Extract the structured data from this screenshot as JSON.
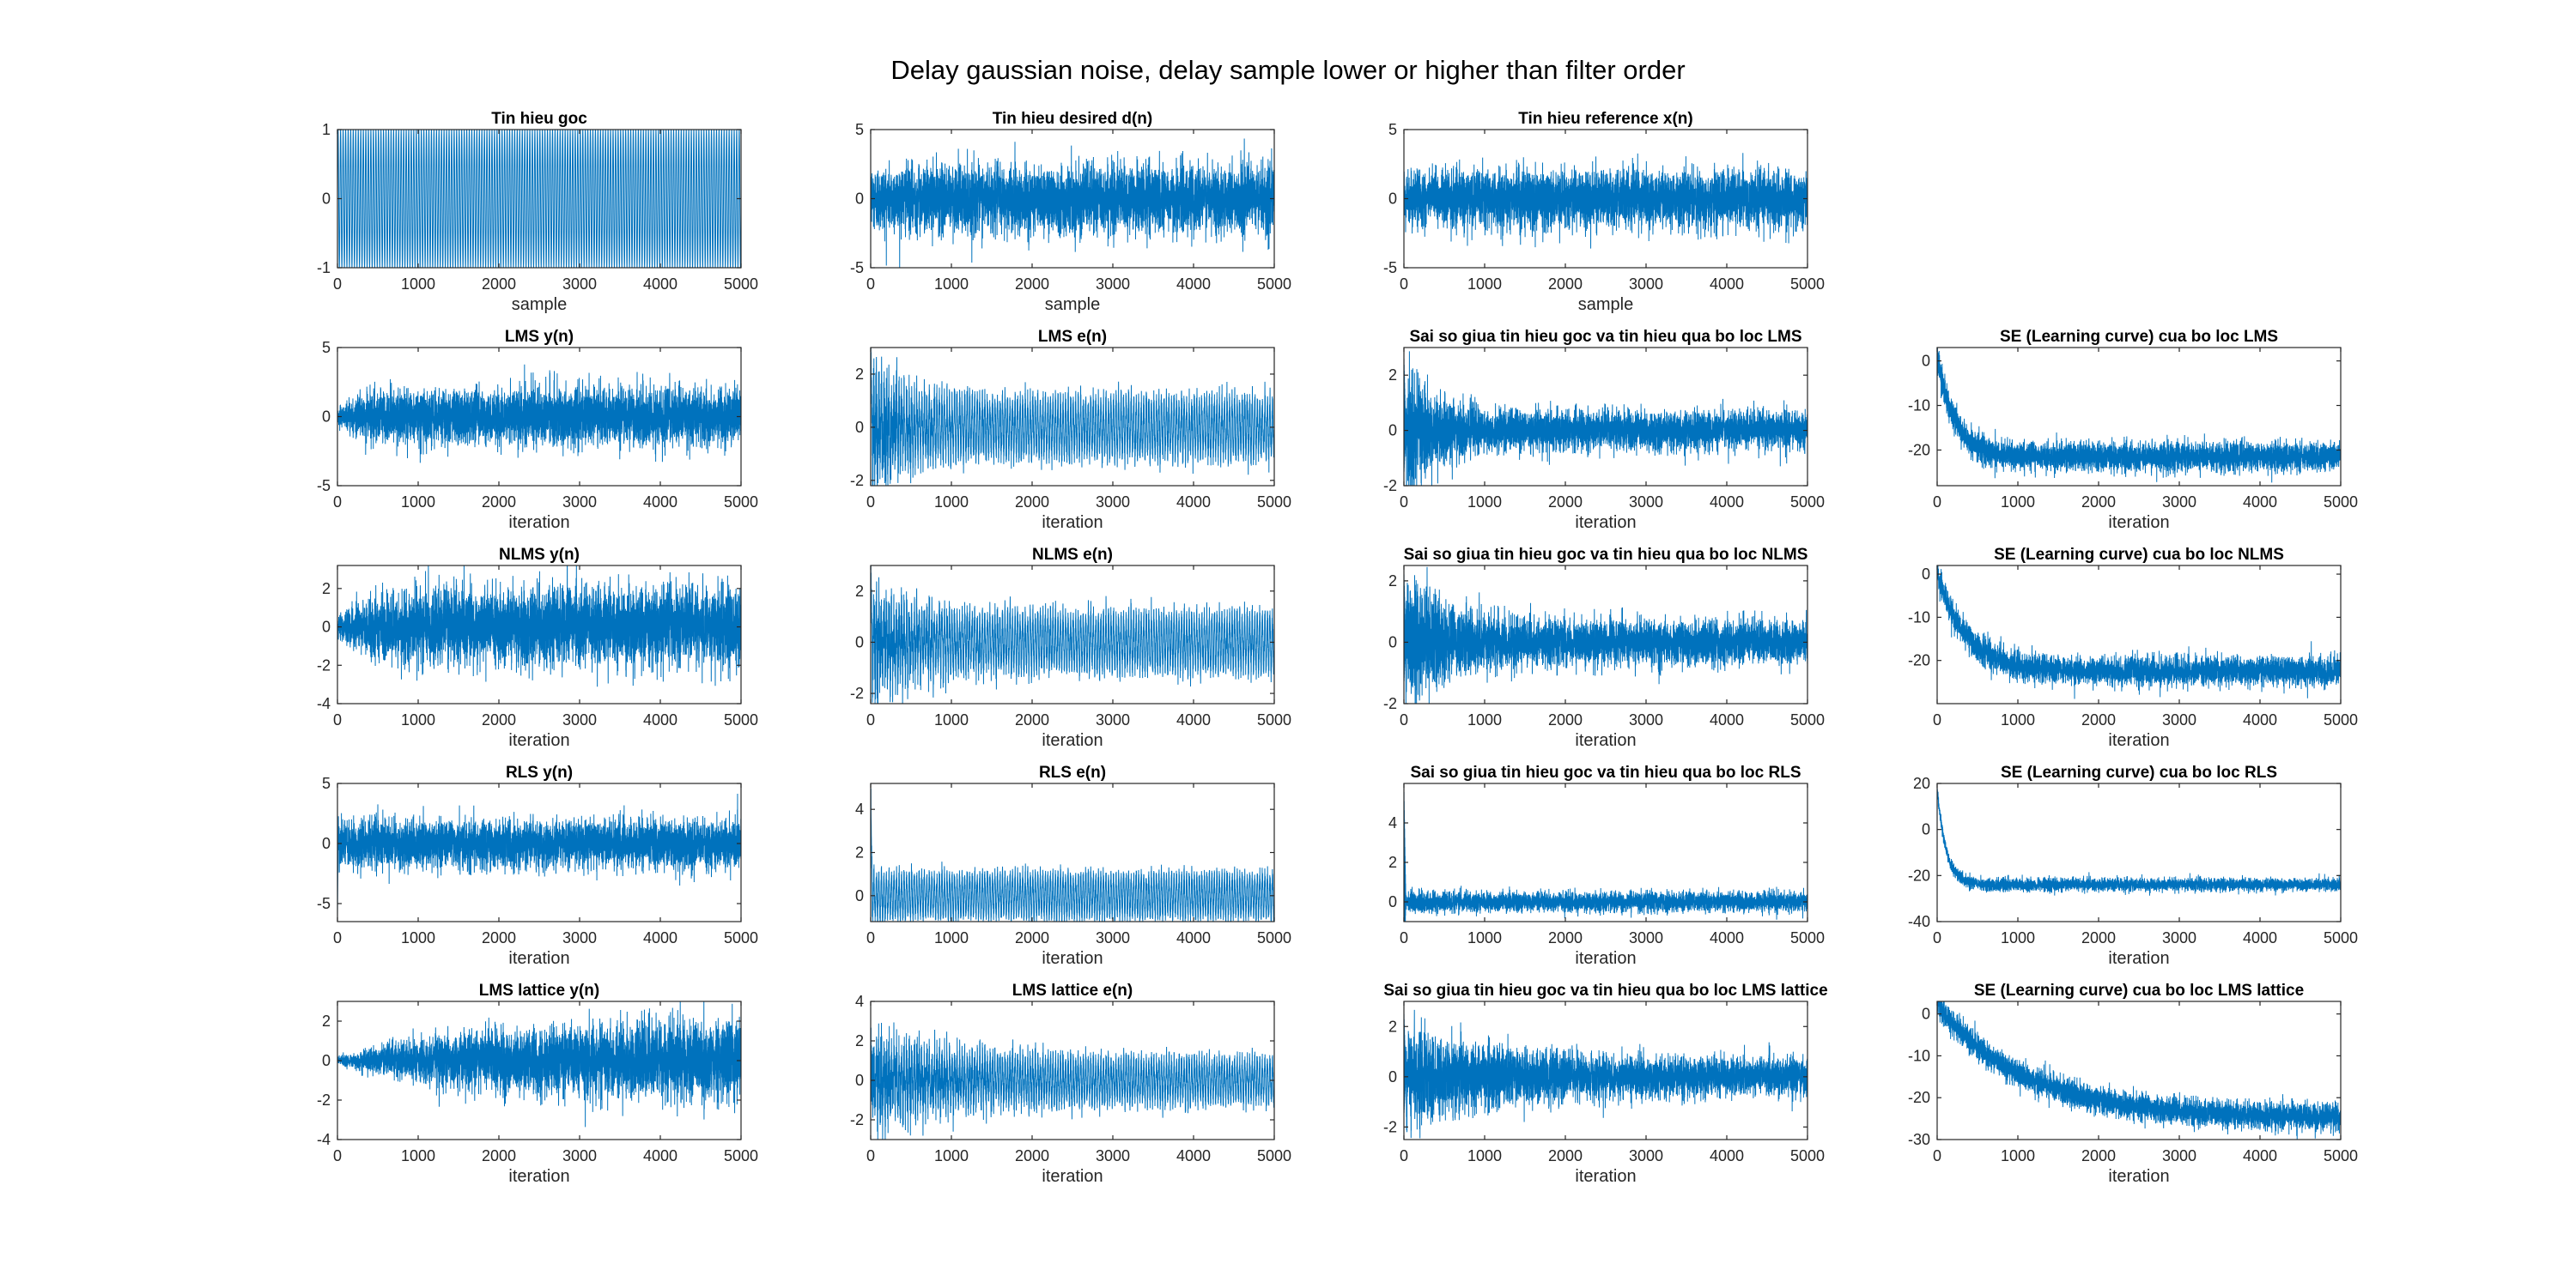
{
  "figure": {
    "title": "Delay gaussian noise, delay sample lower or higher than filter order",
    "line_color": "#0072BD",
    "axis_color": "#262626"
  },
  "chart_data": [
    {
      "id": "tin-hieu-goc",
      "type": "line",
      "title": "Tin hieu goc",
      "xlabel": "sample",
      "ylabel": "",
      "xlim": [
        0,
        5000
      ],
      "ylim": [
        -1,
        1
      ],
      "xticks": [
        0,
        1000,
        2000,
        3000,
        4000,
        5000
      ],
      "yticks": [
        -1,
        0,
        1
      ],
      "signal": {
        "kind": "sinusoid",
        "amplitude": 1.0,
        "cycles": 160,
        "n": 5000
      },
      "series": [
        {
          "values_summary": "sinusoid oscillating between -1 and 1"
        }
      ]
    },
    {
      "id": "desired",
      "type": "line",
      "title": "Tin hieu desired d(n)",
      "xlabel": "sample",
      "ylabel": "",
      "xlim": [
        0,
        5000
      ],
      "ylim": [
        -5,
        5
      ],
      "xticks": [
        0,
        1000,
        2000,
        3000,
        4000,
        5000
      ],
      "yticks": [
        -5,
        0,
        5
      ],
      "signal": {
        "kind": "noise",
        "sigma_start": 1.2,
        "sigma_end": 1.2,
        "n": 5000
      },
      "series": [
        {
          "values_summary": "noisy signal within about ±4"
        }
      ]
    },
    {
      "id": "reference",
      "type": "line",
      "title": "Tin hieu reference x(n)",
      "xlabel": "sample",
      "ylabel": "",
      "xlim": [
        0,
        5000
      ],
      "ylim": [
        -5,
        5
      ],
      "xticks": [
        0,
        1000,
        2000,
        3000,
        4000,
        5000
      ],
      "yticks": [
        -5,
        0,
        5
      ],
      "signal": {
        "kind": "noise",
        "sigma_start": 1.0,
        "sigma_end": 1.0,
        "n": 5000
      },
      "series": [
        {
          "values_summary": "gaussian noise within about ±3"
        }
      ]
    },
    {
      "id": "lms-y",
      "type": "line",
      "title": "LMS y(n)",
      "xlabel": "iteration",
      "ylabel": "",
      "xlim": [
        0,
        5000
      ],
      "ylim": [
        -5,
        5
      ],
      "xticks": [
        0,
        1000,
        2000,
        3000,
        4000,
        5000
      ],
      "yticks": [
        -5,
        0,
        5
      ],
      "signal": {
        "kind": "noise",
        "sigma_start": 0.3,
        "sigma_end": 1.0,
        "decay": 300,
        "n": 5000
      },
      "series": [
        {
          "values_summary": "noisy output growing to about ±3"
        }
      ]
    },
    {
      "id": "lms-e",
      "type": "line",
      "title": "LMS e(n)",
      "xlabel": "iteration",
      "ylabel": "",
      "xlim": [
        0,
        5000
      ],
      "ylim": [
        -2.2,
        3
      ],
      "xticks": [
        0,
        1000,
        2000,
        3000,
        4000,
        5000
      ],
      "yticks": [
        -2,
        0,
        2
      ],
      "signal": {
        "kind": "errsin",
        "amplitude": 1.0,
        "cycles": 160,
        "spike": 3.0,
        "noise_start": 1.2,
        "noise_end": 0.25,
        "decay": 400,
        "n": 5000
      },
      "series": [
        {
          "values_summary": "error converging to sinusoid ±1.5"
        }
      ]
    },
    {
      "id": "lms-diff",
      "type": "line",
      "title": "Sai so giua tin hieu goc va tin hieu qua bo loc LMS",
      "xlabel": "iteration",
      "ylabel": "",
      "xlim": [
        0,
        5000
      ],
      "ylim": [
        -2,
        3
      ],
      "xticks": [
        0,
        1000,
        2000,
        3000,
        4000,
        5000
      ],
      "yticks": [
        -2,
        0,
        2
      ],
      "signal": {
        "kind": "decaynoise",
        "sigma_start": 1.3,
        "sigma_end": 0.35,
        "decay": 350,
        "spike": 2.7,
        "n": 5000
      },
      "series": [
        {
          "values_summary": "difference decaying to about ±0.8"
        }
      ]
    },
    {
      "id": "lms-se",
      "type": "line",
      "title": "SE (Learning curve) cua bo loc LMS",
      "xlabel": "iteration",
      "ylabel": "",
      "xlim": [
        0,
        5000
      ],
      "ylim": [
        -28,
        3
      ],
      "xticks": [
        0,
        1000,
        2000,
        3000,
        4000,
        5000
      ],
      "yticks": [
        -20,
        -10,
        0
      ],
      "signal": {
        "kind": "curve",
        "start": 1.0,
        "end": -21.5,
        "decay": 220,
        "noise": 1.6,
        "n": 5000
      },
      "series": [
        {
          "values_summary": "learning curve falling from 0 to about -22 dB"
        }
      ]
    },
    {
      "id": "nlms-y",
      "type": "line",
      "title": "NLMS y(n)",
      "xlabel": "iteration",
      "ylabel": "",
      "xlim": [
        0,
        5000
      ],
      "ylim": [
        -4,
        3.2
      ],
      "xticks": [
        0,
        1000,
        2000,
        3000,
        4000,
        5000
      ],
      "yticks": [
        -4,
        -2,
        0,
        2
      ],
      "signal": {
        "kind": "noise",
        "sigma_start": 0.3,
        "sigma_end": 1.0,
        "decay": 400,
        "n": 5000
      },
      "series": [
        {
          "values_summary": "noisy output within about ±3"
        }
      ]
    },
    {
      "id": "nlms-e",
      "type": "line",
      "title": "NLMS e(n)",
      "xlabel": "iteration",
      "ylabel": "",
      "xlim": [
        0,
        5000
      ],
      "ylim": [
        -2.4,
        3
      ],
      "xticks": [
        0,
        1000,
        2000,
        3000,
        4000,
        5000
      ],
      "yticks": [
        -2,
        0,
        2
      ],
      "signal": {
        "kind": "errsin",
        "amplitude": 1.0,
        "cycles": 160,
        "spike": 2.9,
        "noise_start": 1.1,
        "noise_end": 0.25,
        "decay": 500,
        "n": 5000
      },
      "series": [
        {
          "values_summary": "error converging to sinusoid ±1.5"
        }
      ]
    },
    {
      "id": "nlms-diff",
      "type": "line",
      "title": "Sai so giua tin hieu goc va tin hieu qua bo loc NLMS",
      "xlabel": "iteration",
      "ylabel": "",
      "xlim": [
        0,
        5000
      ],
      "ylim": [
        -2,
        2.5
      ],
      "xticks": [
        0,
        1000,
        2000,
        3000,
        4000,
        5000
      ],
      "yticks": [
        -2,
        0,
        2
      ],
      "signal": {
        "kind": "decaynoise",
        "sigma_start": 1.2,
        "sigma_end": 0.35,
        "decay": 500,
        "spike": 2.3,
        "n": 5000
      },
      "series": [
        {
          "values_summary": "difference decaying to about ±0.8"
        }
      ]
    },
    {
      "id": "nlms-se",
      "type": "line",
      "title": "SE (Learning curve) cua bo loc NLMS",
      "xlabel": "iteration",
      "ylabel": "",
      "xlim": [
        0,
        5000
      ],
      "ylim": [
        -30,
        2
      ],
      "xticks": [
        0,
        1000,
        2000,
        3000,
        4000,
        5000
      ],
      "yticks": [
        -20,
        -10,
        0
      ],
      "signal": {
        "kind": "curve",
        "start": 0.0,
        "end": -22.5,
        "decay": 360,
        "noise": 1.6,
        "n": 5000
      },
      "series": [
        {
          "values_summary": "learning curve falling from 0 to about -23 dB"
        }
      ]
    },
    {
      "id": "rls-y",
      "type": "line",
      "title": "RLS y(n)",
      "xlabel": "iteration",
      "ylabel": "",
      "xlim": [
        0,
        5000
      ],
      "ylim": [
        -6.5,
        5
      ],
      "xticks": [
        0,
        1000,
        2000,
        3000,
        4000,
        5000
      ],
      "yticks": [
        -5,
        0,
        5
      ],
      "signal": {
        "kind": "noise",
        "sigma_start": 1.0,
        "sigma_end": 1.0,
        "spike": -6.0,
        "n": 5000
      },
      "series": [
        {
          "values_summary": "noisy output within about ±3 with initial spike to -6"
        }
      ]
    },
    {
      "id": "rls-e",
      "type": "line",
      "title": "RLS e(n)",
      "xlabel": "iteration",
      "ylabel": "",
      "xlim": [
        0,
        5000
      ],
      "ylim": [
        -1.2,
        5.2
      ],
      "xticks": [
        0,
        1000,
        2000,
        3000,
        4000,
        5000
      ],
      "yticks": [
        0,
        2,
        4
      ],
      "signal": {
        "kind": "errsin",
        "amplitude": 0.95,
        "cycles": 160,
        "spike": 5.0,
        "noise_start": 0.4,
        "noise_end": 0.2,
        "decay": 100,
        "n": 5000
      },
      "series": [
        {
          "values_summary": "error sinusoid ±1.3 with initial spike to 5"
        }
      ]
    },
    {
      "id": "rls-diff",
      "type": "line",
      "title": "Sai so giua tin hieu goc va tin hieu qua bo loc RLS",
      "xlabel": "iteration",
      "ylabel": "",
      "xlim": [
        0,
        5000
      ],
      "ylim": [
        -1,
        6
      ],
      "xticks": [
        0,
        1000,
        2000,
        3000,
        4000,
        5000
      ],
      "yticks": [
        0,
        2,
        4
      ],
      "signal": {
        "kind": "decaynoise",
        "sigma_start": 0.3,
        "sigma_end": 0.25,
        "decay": 100,
        "spike": 5.8,
        "n": 5000
      },
      "series": [
        {
          "values_summary": "difference near 0 with initial spike to 5.8"
        }
      ]
    },
    {
      "id": "rls-se",
      "type": "line",
      "title": "SE (Learning curve) cua bo loc RLS",
      "xlabel": "iteration",
      "ylabel": "",
      "xlim": [
        0,
        5000
      ],
      "ylim": [
        -40,
        20
      ],
      "xticks": [
        0,
        1000,
        2000,
        3000,
        4000,
        5000
      ],
      "yticks": [
        -40,
        -20,
        0,
        20
      ],
      "signal": {
        "kind": "curve",
        "start": 18.0,
        "end": -24.0,
        "decay": 110,
        "noise": 1.4,
        "n": 5000
      },
      "series": [
        {
          "values_summary": "learning curve falling from 18 to about -24 dB"
        }
      ]
    },
    {
      "id": "lattice-y",
      "type": "line",
      "title": "LMS lattice y(n)",
      "xlabel": "iteration",
      "ylabel": "",
      "xlim": [
        0,
        5000
      ],
      "ylim": [
        -4,
        3
      ],
      "xticks": [
        0,
        1000,
        2000,
        3000,
        4000,
        5000
      ],
      "yticks": [
        -4,
        -2,
        0,
        2
      ],
      "signal": {
        "kind": "noise",
        "sigma_start": 0.1,
        "sigma_end": 1.0,
        "decay": 1500,
        "n": 5000
      },
      "series": [
        {
          "values_summary": "output slowly growing to about ±3"
        }
      ]
    },
    {
      "id": "lattice-e",
      "type": "line",
      "title": "LMS lattice e(n)",
      "xlabel": "iteration",
      "ylabel": "",
      "xlim": [
        0,
        5000
      ],
      "ylim": [
        -3,
        4
      ],
      "xticks": [
        0,
        1000,
        2000,
        3000,
        4000,
        5000
      ],
      "yticks": [
        -2,
        0,
        2,
        4
      ],
      "signal": {
        "kind": "errsin",
        "amplitude": 1.0,
        "cycles": 160,
        "spike": 0,
        "noise_start": 1.0,
        "noise_end": 0.25,
        "decay": 1200,
        "n": 5000
      },
      "series": [
        {
          "values_summary": "error slowly converging to sinusoid ±1.5"
        }
      ]
    },
    {
      "id": "lattice-diff",
      "type": "line",
      "title": "Sai so giua tin hieu goc va tin hieu qua bo loc LMS lattice",
      "xlabel": "iteration",
      "ylabel": "",
      "xlim": [
        0,
        5000
      ],
      "ylim": [
        -2.5,
        3
      ],
      "xticks": [
        0,
        1000,
        2000,
        3000,
        4000,
        5000
      ],
      "yticks": [
        -2,
        0,
        2
      ],
      "signal": {
        "kind": "decaynoise",
        "sigma_start": 1.0,
        "sigma_end": 0.35,
        "decay": 1200,
        "spike": 2.6,
        "n": 5000
      },
      "series": [
        {
          "values_summary": "difference slowly decaying to about ±0.8"
        }
      ]
    },
    {
      "id": "lattice-se",
      "type": "line",
      "title": "SE (Learning curve) cua bo loc LMS lattice",
      "xlabel": "iteration",
      "ylabel": "",
      "xlim": [
        0,
        5000
      ],
      "ylim": [
        -30,
        3
      ],
      "xticks": [
        0,
        1000,
        2000,
        3000,
        4000,
        5000
      ],
      "yticks": [
        -30,
        -20,
        -10,
        0
      ],
      "signal": {
        "kind": "curve",
        "start": 2.0,
        "end": -25.0,
        "decay": 1100,
        "noise": 1.6,
        "n": 5000
      },
      "series": [
        {
          "values_summary": "learning curve slowly falling to about -25 dB"
        }
      ]
    }
  ]
}
